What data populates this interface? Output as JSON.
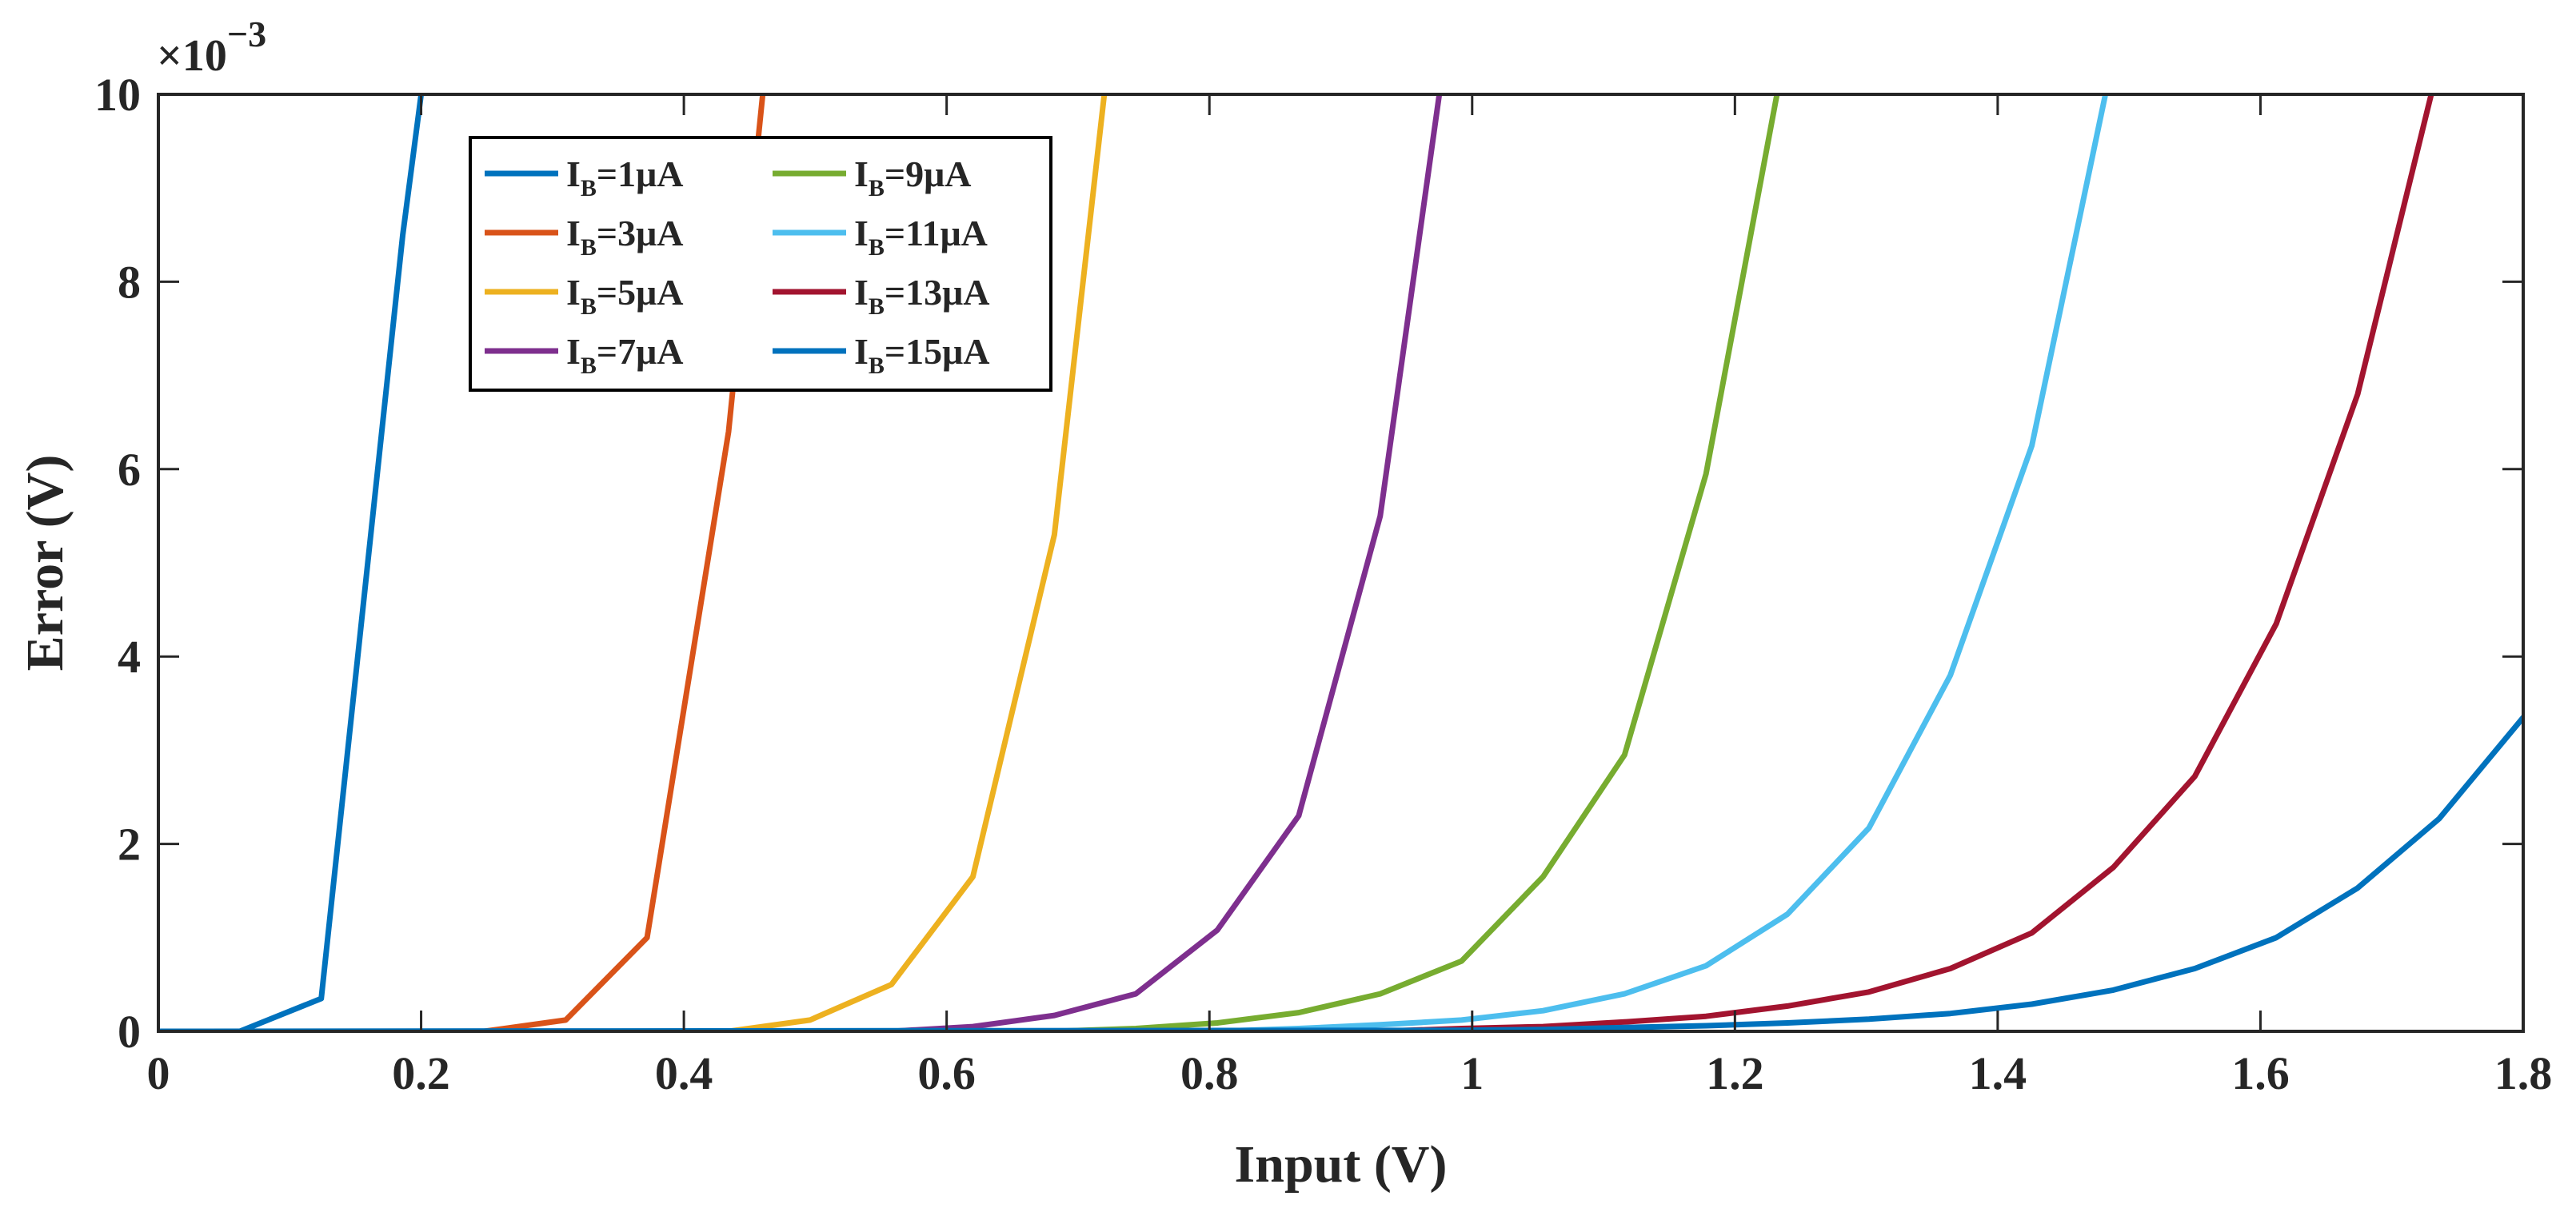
{
  "chart_data": {
    "type": "line",
    "xlabel": "Input (V)",
    "ylabel": "Error (V)",
    "y_exponent_label": "×10",
    "y_exponent_power": "−3",
    "xlim": [
      0,
      1.8
    ],
    "ylim": [
      0,
      10
    ],
    "y_scale_factor": 0.001,
    "xticks": [
      0,
      0.2,
      0.4,
      0.6,
      0.8,
      1.0,
      1.2,
      1.4,
      1.6,
      1.8
    ],
    "xtick_labels": [
      "0",
      "0.2",
      "0.4",
      "0.6",
      "0.8",
      "1",
      "1.2",
      "1.4",
      "1.6",
      "1.8"
    ],
    "yticks": [
      0,
      2,
      4,
      6,
      8,
      10
    ],
    "ytick_labels": [
      "0",
      "2",
      "4",
      "6",
      "8",
      "10"
    ],
    "grid": false,
    "legend_position": "top-left",
    "legend_columns": 2,
    "series": [
      {
        "name": "IB=1μA",
        "name_main": "I",
        "name_sub": "B",
        "name_rest": "=1μA",
        "color": "#0072BD",
        "x": [
          0,
          0.062,
          0.124,
          0.186,
          0.2
        ],
        "y": [
          0,
          0,
          0.35,
          8.5,
          10
        ]
      },
      {
        "name": "IB=3μA",
        "name_main": "I",
        "name_sub": "B",
        "name_rest": "=3μA",
        "color": "#D95319",
        "x": [
          0,
          0.248,
          0.31,
          0.372,
          0.434,
          0.46
        ],
        "y": [
          0,
          0,
          0.12,
          1.0,
          6.4,
          10
        ]
      },
      {
        "name": "IB=5μA",
        "name_main": "I",
        "name_sub": "B",
        "name_rest": "=5μA",
        "color": "#EDB120",
        "x": [
          0,
          0.434,
          0.496,
          0.558,
          0.62,
          0.682,
          0.72
        ],
        "y": [
          0,
          0,
          0.12,
          0.5,
          1.65,
          5.3,
          10
        ]
      },
      {
        "name": "IB=7μA",
        "name_main": "I",
        "name_sub": "B",
        "name_rest": "=7μA",
        "color": "#7E2F8E",
        "x": [
          0,
          0.558,
          0.62,
          0.682,
          0.744,
          0.806,
          0.868,
          0.93,
          0.975
        ],
        "y": [
          0,
          0,
          0.05,
          0.17,
          0.4,
          1.08,
          2.3,
          5.5,
          10
        ]
      },
      {
        "name": "IB=9μA",
        "name_main": "I",
        "name_sub": "B",
        "name_rest": "=9μA",
        "color": "#77AC30",
        "x": [
          0,
          0.682,
          0.744,
          0.806,
          0.868,
          0.93,
          0.992,
          1.054,
          1.116,
          1.178,
          1.232
        ],
        "y": [
          0,
          0,
          0.03,
          0.09,
          0.2,
          0.4,
          0.75,
          1.65,
          2.95,
          5.95,
          10
        ]
      },
      {
        "name": "IB=11μA",
        "name_main": "I",
        "name_sub": "B",
        "name_rest": "=11μA",
        "color": "#4DBEEE",
        "x": [
          0,
          0.806,
          0.868,
          0.93,
          0.992,
          1.054,
          1.116,
          1.178,
          1.24,
          1.302,
          1.364,
          1.426,
          1.482
        ],
        "y": [
          0,
          0,
          0.03,
          0.07,
          0.12,
          0.22,
          0.4,
          0.7,
          1.25,
          2.17,
          3.8,
          6.25,
          10
        ]
      },
      {
        "name": "IB=13μA",
        "name_main": "I",
        "name_sub": "B",
        "name_rest": "=13μA",
        "color": "#A2142F",
        "x": [
          0,
          0.93,
          0.992,
          1.054,
          1.116,
          1.178,
          1.24,
          1.302,
          1.364,
          1.426,
          1.488,
          1.55,
          1.612,
          1.674,
          1.73
        ],
        "y": [
          0,
          0,
          0.03,
          0.05,
          0.1,
          0.16,
          0.27,
          0.42,
          0.67,
          1.05,
          1.75,
          2.72,
          4.35,
          6.8,
          10
        ]
      },
      {
        "name": "IB=15μA",
        "name_main": "I",
        "name_sub": "B",
        "name_rest": "=15μA",
        "color": "#0072BD",
        "x": [
          0,
          0.992,
          1.054,
          1.116,
          1.178,
          1.24,
          1.302,
          1.364,
          1.426,
          1.488,
          1.55,
          1.612,
          1.674,
          1.736,
          1.8
        ],
        "y": [
          0,
          0.01,
          0.02,
          0.04,
          0.06,
          0.09,
          0.13,
          0.19,
          0.29,
          0.44,
          0.67,
          1.0,
          1.53,
          2.27,
          3.35
        ]
      }
    ]
  }
}
